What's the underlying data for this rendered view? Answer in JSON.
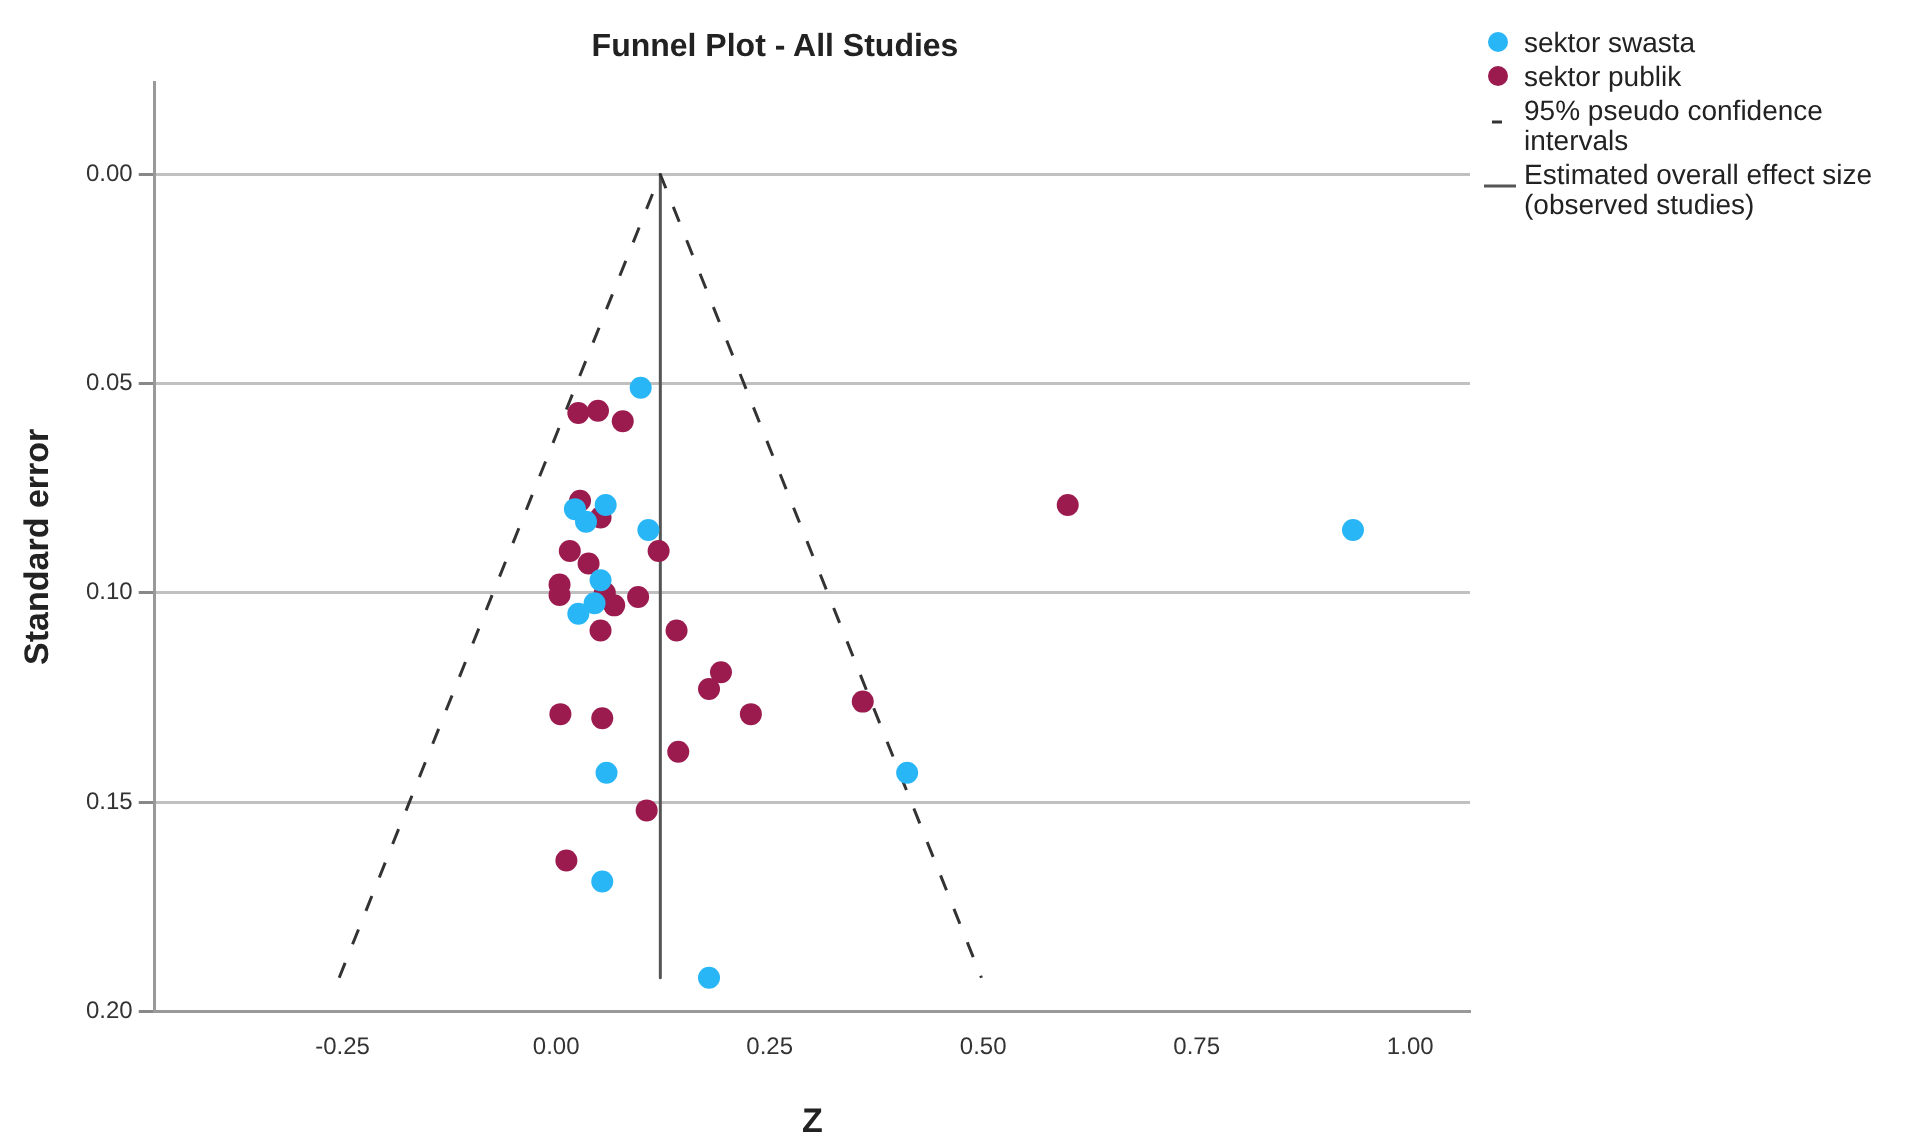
{
  "chart_data": {
    "type": "scatter",
    "title": "Funnel Plot - All Studies",
    "xlabel": "Z",
    "ylabel": "Standard error",
    "xlim": [
      -0.47,
      1.07
    ],
    "ylim": [
      0.2,
      -0.022
    ],
    "xticks": [
      {
        "value": -0.25,
        "label": "-0.25"
      },
      {
        "value": 0,
        "label": "0.00"
      },
      {
        "value": 0.25,
        "label": "0.25"
      },
      {
        "value": 0.5,
        "label": "0.50"
      },
      {
        "value": 0.75,
        "label": "0.75"
      },
      {
        "value": 1,
        "label": "1.00"
      }
    ],
    "yticks": [
      {
        "value": 0,
        "label": "0.00"
      },
      {
        "value": 0.05,
        "label": "0.05"
      },
      {
        "value": 0.1,
        "label": "0.10"
      },
      {
        "value": 0.15,
        "label": "0.15"
      },
      {
        "value": 0.2,
        "label": "0.20"
      }
    ],
    "grid": "y",
    "legend": "top right",
    "marker": "circle",
    "series": [
      {
        "name": "sektor swasta",
        "color": "#29b6f6",
        "x": [
          0.099,
          0.022,
          0.035,
          0.058,
          0.108,
          0.052,
          0.026,
          0.045,
          0.059,
          0.411,
          0.054,
          0.179,
          0.933
        ],
        "values": [
          0.051,
          0.08,
          0.083,
          0.079,
          0.085,
          0.097,
          0.105,
          0.1025,
          0.143,
          0.143,
          0.169,
          0.192,
          0.085
        ]
      },
      {
        "name": "sektor publik",
        "color": "#9c1b4f",
        "x": [
          0.599,
          0.026,
          0.049,
          0.078,
          0.028,
          0.052,
          0.016,
          0.038,
          0.12,
          0.004,
          0.004,
          0.057,
          0.068,
          0.096,
          0.052,
          0.141,
          0.193,
          0.179,
          0.005,
          0.054,
          0.228,
          0.359,
          0.143,
          0.106,
          0.012
        ],
        "values": [
          0.079,
          0.057,
          0.0565,
          0.059,
          0.078,
          0.082,
          0.09,
          0.093,
          0.09,
          0.098,
          0.1005,
          0.1,
          0.103,
          0.101,
          0.109,
          0.109,
          0.119,
          0.123,
          0.129,
          0.13,
          0.129,
          0.126,
          0.138,
          0.152,
          0.164
        ]
      },
      {
        "name": "95% pseudo confidence intervals",
        "type": "line",
        "color": "#333333",
        "line_style": "dashed",
        "marker": "none",
        "x": [
          -0.254,
          0.122,
          0.498
        ],
        "values": [
          0.192,
          0,
          0.192
        ]
      },
      {
        "name": "Estimated overall effect size (observed studies)",
        "type": "line",
        "color": "#555555",
        "line_style": "solid",
        "marker": "none",
        "x": [
          0.122,
          0.122
        ],
        "values": [
          0,
          0.192
        ]
      }
    ]
  }
}
